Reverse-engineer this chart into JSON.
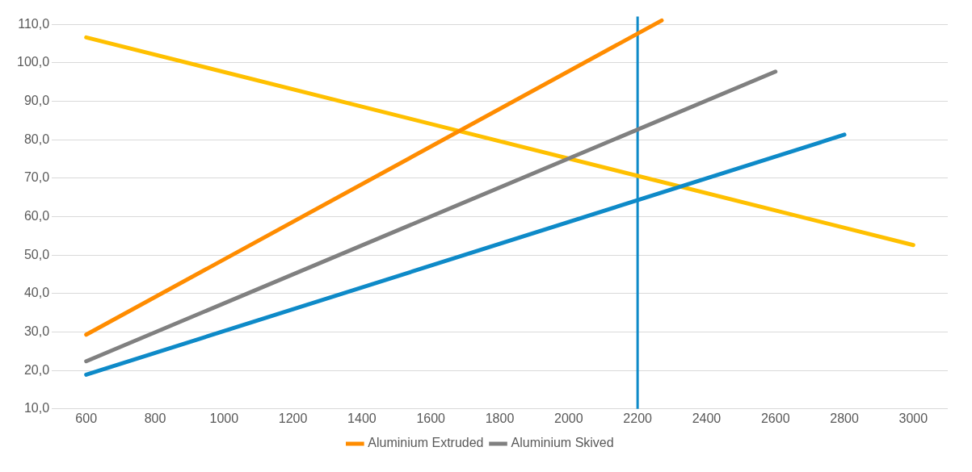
{
  "chart_data": {
    "type": "line",
    "xlim": [
      500,
      3100
    ],
    "ylim": [
      10,
      112
    ],
    "xticks": [
      600,
      800,
      1000,
      1200,
      1400,
      1600,
      1800,
      2000,
      2200,
      2400,
      2600,
      2800,
      3000
    ],
    "yticks": [
      {
        "value": 10,
        "label": "10,0"
      },
      {
        "value": 20,
        "label": "20,0"
      },
      {
        "value": 30,
        "label": "30,0"
      },
      {
        "value": 40,
        "label": "40,0"
      },
      {
        "value": 50,
        "label": "50,0"
      },
      {
        "value": 60,
        "label": "60,0"
      },
      {
        "value": 70,
        "label": "70,0"
      },
      {
        "value": 80,
        "label": "80,0"
      },
      {
        "value": 90,
        "label": "90,0"
      },
      {
        "value": 100,
        "label": "100,0"
      },
      {
        "value": 110,
        "label": "110,0"
      }
    ],
    "series": [
      {
        "name": "Aluminium Extruded",
        "color": "#ff8c00",
        "x": [
          600,
          2270
        ],
        "values": [
          29.3,
          111
        ]
      },
      {
        "name": "Aluminium Skived",
        "color": "#808080",
        "x": [
          600,
          2600
        ],
        "values": [
          22.4,
          97.7
        ]
      },
      {
        "color": "#0e8ac8",
        "x": [
          600,
          2800
        ],
        "values": [
          18.9,
          81.3
        ]
      },
      {
        "color": "#ffc000",
        "x": [
          600,
          3000
        ],
        "values": [
          106.6,
          52.6
        ]
      }
    ],
    "ref_lines": [
      {
        "axis": "x",
        "value": 2200,
        "color": "#0e8ac8"
      }
    ],
    "grid": "y",
    "legend": "bottom",
    "marker": "none",
    "line_style": "solid"
  }
}
